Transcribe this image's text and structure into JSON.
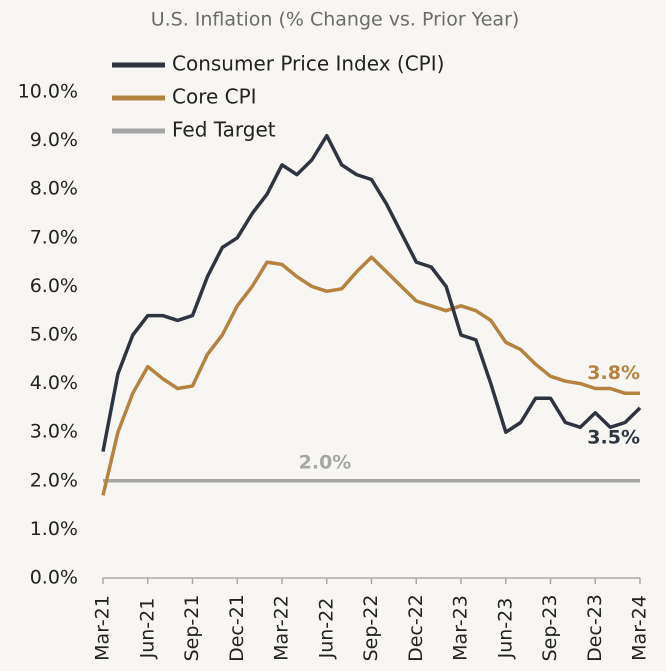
{
  "chart_data": {
    "type": "line",
    "title": "U.S. Inflation (% Change vs. Prior Year)",
    "categories": [
      "Mar-21",
      null,
      null,
      "Jun-21",
      null,
      null,
      "Sep-21",
      null,
      null,
      "Dec-21",
      null,
      null,
      "Mar-22",
      null,
      null,
      "Jun-22",
      null,
      null,
      "Sep-22",
      null,
      null,
      "Dec-22",
      null,
      null,
      "Mar-23",
      null,
      null,
      "Jun-23",
      null,
      null,
      "Sep-23",
      null,
      null,
      "Dec-23",
      null,
      null,
      "Mar-24"
    ],
    "series": [
      {
        "name": "Consumer Price Index (CPI)",
        "color": "#2e3440",
        "values": [
          2.6,
          4.2,
          5.0,
          5.4,
          5.4,
          5.3,
          5.4,
          6.2,
          6.8,
          7.0,
          7.5,
          7.9,
          8.5,
          8.3,
          8.6,
          9.1,
          8.5,
          8.3,
          8.2,
          7.7,
          7.1,
          6.5,
          6.4,
          6.0,
          5.0,
          4.9,
          4.0,
          3.0,
          3.2,
          3.7,
          3.7,
          3.2,
          3.1,
          3.4,
          3.1,
          3.2,
          3.5
        ]
      },
      {
        "name": "Core CPI",
        "color": "#b5823f",
        "values": [
          1.7,
          3.0,
          3.8,
          4.35,
          4.1,
          3.9,
          3.95,
          4.6,
          5.0,
          5.6,
          6.0,
          6.5,
          6.45,
          6.2,
          6.0,
          5.9,
          5.95,
          6.3,
          6.6,
          6.3,
          6.0,
          5.7,
          5.6,
          5.5,
          5.6,
          5.5,
          5.3,
          4.85,
          4.7,
          4.4,
          4.15,
          4.05,
          4.0,
          3.9,
          3.9,
          3.8,
          3.8
        ]
      },
      {
        "name": "Fed Target",
        "color": "#a6a6a6",
        "values": [
          2.0,
          2.0,
          2.0,
          2.0,
          2.0,
          2.0,
          2.0,
          2.0,
          2.0,
          2.0,
          2.0,
          2.0,
          2.0,
          2.0,
          2.0,
          2.0,
          2.0,
          2.0,
          2.0,
          2.0,
          2.0,
          2.0,
          2.0,
          2.0,
          2.0,
          2.0,
          2.0,
          2.0,
          2.0,
          2.0,
          2.0,
          2.0,
          2.0,
          2.0,
          2.0,
          2.0,
          2.0
        ]
      }
    ],
    "annotations": [
      "3.8%",
      "3.5%",
      "2.0%"
    ],
    "ylim": [
      0,
      10
    ],
    "yticks": [
      {
        "value": 0,
        "label": "0.0%"
      },
      {
        "value": 1,
        "label": "1.0%"
      },
      {
        "value": 2,
        "label": "2.0%"
      },
      {
        "value": 3,
        "label": "3.0%"
      },
      {
        "value": 4,
        "label": "4.0%"
      },
      {
        "value": 5,
        "label": "5.0%"
      },
      {
        "value": 6,
        "label": "6.0%"
      },
      {
        "value": 7,
        "label": "7.0%"
      },
      {
        "value": 8,
        "label": "8.0%"
      },
      {
        "value": 9,
        "label": "9.0%"
      },
      {
        "value": 10,
        "label": "10.0%"
      }
    ],
    "grid": false,
    "legend": "upper left"
  }
}
